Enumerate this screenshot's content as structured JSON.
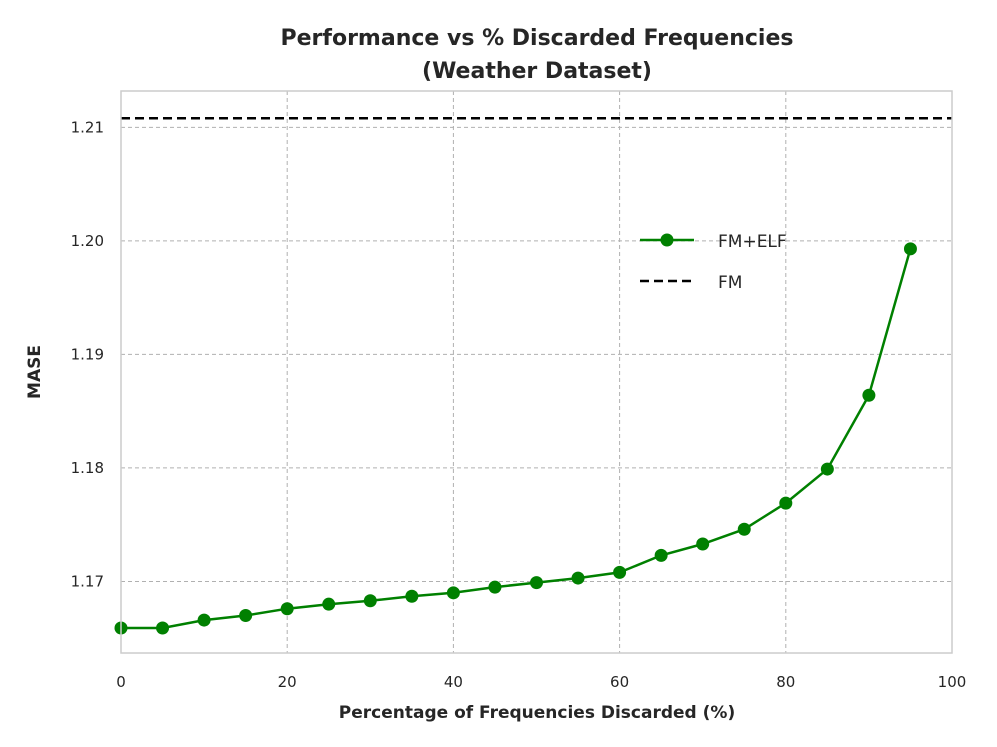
{
  "chart_data": {
    "type": "line",
    "title": "Performance vs % Discarded Frequencies",
    "subtitle": "(Weather Dataset)",
    "xlabel": "Percentage of Frequencies Discarded (%)",
    "ylabel": "MASE",
    "xlim": [
      0,
      100
    ],
    "ylim": [
      1.1637,
      1.2132
    ],
    "x_ticks": [
      0,
      20,
      40,
      60,
      80,
      100
    ],
    "y_ticks": [
      1.17,
      1.18,
      1.19,
      1.2,
      1.21
    ],
    "y_tick_labels": [
      "1.17",
      "1.18",
      "1.19",
      "1.20",
      "1.21"
    ],
    "grid": true,
    "legend_position": "center-right",
    "series": [
      {
        "name": "FM+ELF",
        "color": "#008000",
        "style": "solid-with-markers",
        "x": [
          0,
          5,
          10,
          15,
          20,
          25,
          30,
          35,
          40,
          45,
          50,
          55,
          60,
          65,
          70,
          75,
          80,
          85,
          90,
          95
        ],
        "values": [
          1.1659,
          1.1659,
          1.1666,
          1.167,
          1.1676,
          1.168,
          1.1683,
          1.1687,
          1.169,
          1.1695,
          1.1699,
          1.1703,
          1.1708,
          1.1723,
          1.1733,
          1.1746,
          1.1769,
          1.1799,
          1.1864,
          1.1993
        ]
      },
      {
        "name": "FM",
        "color": "#000000",
        "style": "dashed",
        "constant": 1.2108
      }
    ]
  }
}
